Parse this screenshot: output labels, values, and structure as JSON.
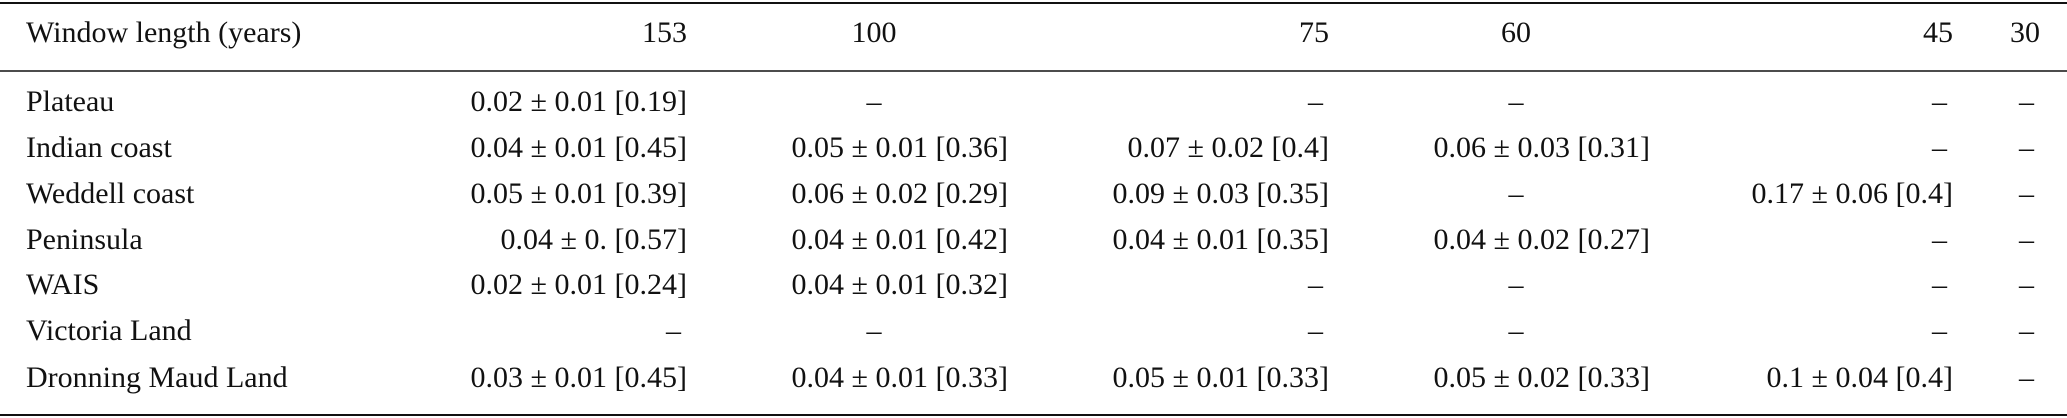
{
  "table": {
    "header": [
      "Window length (years)",
      "153",
      "100",
      "75",
      "60",
      "45",
      "30"
    ],
    "rows": [
      [
        "Plateau",
        "0.02 ± 0.01 [0.19]",
        "–",
        "–",
        "–",
        "–",
        "–"
      ],
      [
        "Indian coast",
        "0.04 ± 0.01 [0.45]",
        "0.05 ± 0.01 [0.36]",
        "0.07 ± 0.02 [0.4]",
        "0.06 ± 0.03 [0.31]",
        "–",
        "–"
      ],
      [
        "Weddell coast",
        "0.05 ± 0.01 [0.39]",
        "0.06 ± 0.02 [0.29]",
        "0.09 ± 0.03 [0.35]",
        "–",
        "0.17 ± 0.06 [0.4]",
        "–"
      ],
      [
        "Peninsula",
        "0.04 ± 0. [0.57]",
        "0.04 ± 0.01 [0.42]",
        "0.04 ± 0.01 [0.35]",
        "0.04 ± 0.02 [0.27]",
        "–",
        "–"
      ],
      [
        "WAIS",
        "0.02 ± 0.01 [0.24]",
        "0.04 ± 0.01 [0.32]",
        "–",
        "–",
        "–",
        "–"
      ],
      [
        "Victoria Land",
        "–",
        "–",
        "–",
        "–",
        "–",
        "–"
      ],
      [
        "Dronning Maud Land",
        "0.03 ± 0.01 [0.45]",
        "0.04 ± 0.01 [0.33]",
        "0.05 ± 0.01 [0.33]",
        "0.05 ± 0.02 [0.33]",
        "0.1 ± 0.04 [0.4]",
        "–"
      ]
    ]
  }
}
